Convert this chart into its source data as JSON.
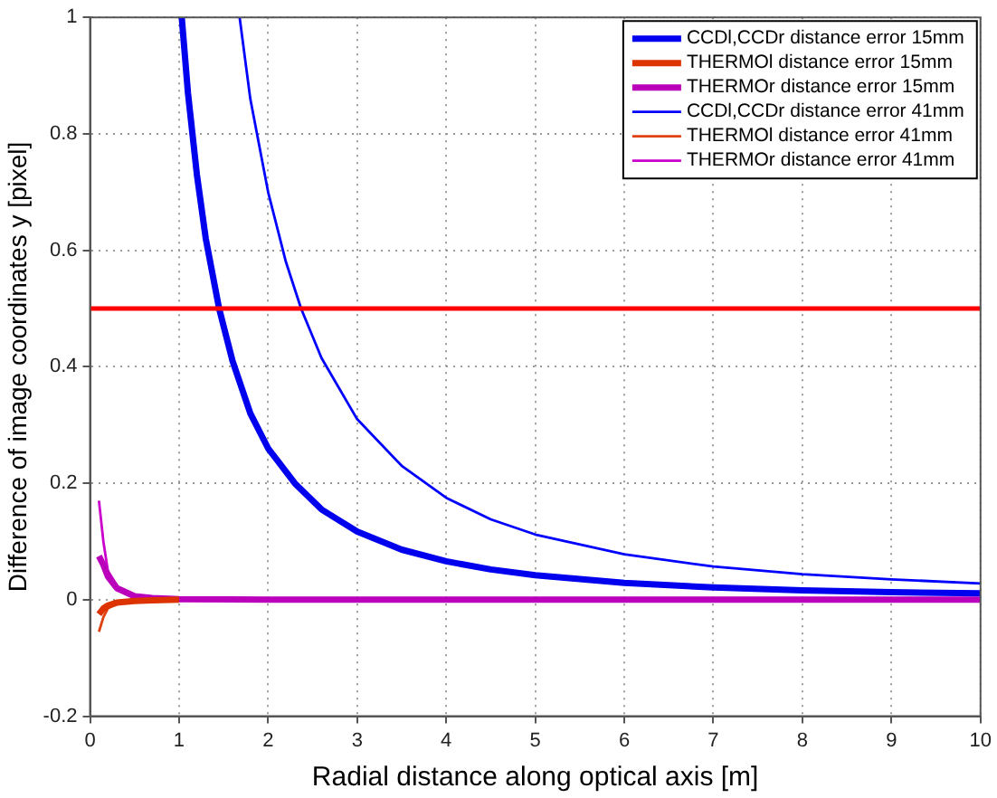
{
  "chart_data": {
    "type": "line",
    "xlabel": "Radial distance along optical axis [m]",
    "ylabel": "Difference of image coordinates y [pixel]",
    "xlim": [
      0,
      10
    ],
    "ylim": [
      -0.2,
      1
    ],
    "xticks": [
      0,
      1,
      2,
      3,
      4,
      5,
      6,
      7,
      8,
      9,
      10
    ],
    "yticks": [
      -0.2,
      0,
      0.2,
      0.4,
      0.6,
      0.8,
      1
    ],
    "grid": true,
    "legend": "top right",
    "marker": "none",
    "line_style": "solid",
    "ref_lines": [
      {
        "axis": "y",
        "value": 0.5,
        "color": "#ff0000"
      }
    ],
    "series": [
      {
        "name": "CCDl,CCDr distance error 15mm",
        "color": "#0000ee",
        "x": [
          1.03,
          1.1,
          1.2,
          1.3,
          1.45,
          1.6,
          1.8,
          2,
          2.3,
          2.6,
          3,
          3.5,
          4,
          4.5,
          5,
          6,
          7,
          8,
          9,
          10
        ],
        "values": [
          1,
          0.87,
          0.73,
          0.62,
          0.5,
          0.41,
          0.32,
          0.26,
          0.2,
          0.155,
          0.117,
          0.086,
          0.066,
          0.052,
          0.042,
          0.029,
          0.021,
          0.016,
          0.013,
          0.011
        ]
      },
      {
        "name": "THERMOl distance error 15mm",
        "color": "#dd3300",
        "x": [
          0.1,
          0.15,
          0.2,
          0.3,
          0.5,
          0.7,
          1
        ],
        "values": [
          -0.025,
          -0.015,
          -0.01,
          -0.005,
          -0.002,
          -0.001,
          0
        ]
      },
      {
        "name": "THERMOr distance error 15mm",
        "color": "#bb00bb",
        "x": [
          0.1,
          0.15,
          0.2,
          0.3,
          0.5,
          0.7,
          1,
          2,
          5,
          10
        ],
        "values": [
          0.075,
          0.06,
          0.04,
          0.02,
          0.006,
          0.003,
          0.001,
          0,
          0,
          0
        ]
      },
      {
        "name": "CCDl,CCDr distance error 41mm",
        "color": "#0000ff",
        "x": [
          1.68,
          1.8,
          2,
          2.2,
          2.37,
          2.6,
          3,
          3.5,
          4,
          4.5,
          5,
          6,
          7,
          8,
          9,
          10
        ],
        "values": [
          1,
          0.86,
          0.7,
          0.58,
          0.5,
          0.415,
          0.31,
          0.23,
          0.175,
          0.138,
          0.112,
          0.078,
          0.057,
          0.044,
          0.035,
          0.028
        ]
      },
      {
        "name": "THERMOl distance error 41mm",
        "color": "#e04010",
        "x": [
          0.1,
          0.15,
          0.2,
          0.3
        ],
        "values": [
          -0.055,
          -0.03,
          -0.015,
          -0.007
        ]
      },
      {
        "name": "THERMOr distance error 41mm",
        "color": "#cc00cc",
        "x": [
          0.1,
          0.15,
          0.2,
          0.3
        ],
        "values": [
          0.17,
          0.1,
          0.05,
          0.025
        ]
      }
    ]
  }
}
